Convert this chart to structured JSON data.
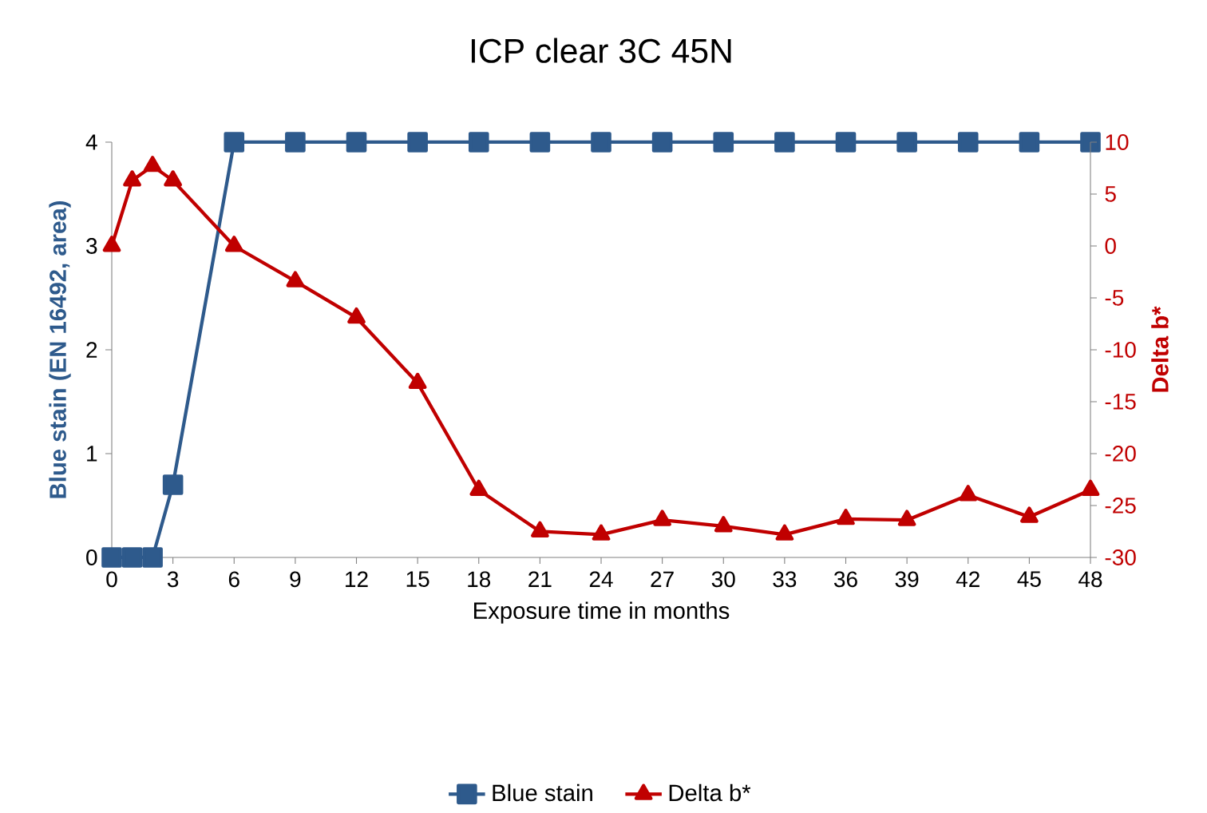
{
  "chart_data": {
    "type": "line",
    "title": "ICP clear 3C 45N",
    "xlabel": "Exposure time in months",
    "ylabel": "Blue stain (EN 16492, area)",
    "y2label": "Delta b*",
    "xlim": [
      0,
      48
    ],
    "xticks": [
      0,
      3,
      6,
      9,
      12,
      15,
      18,
      21,
      24,
      27,
      30,
      33,
      36,
      39,
      42,
      45,
      48
    ],
    "ylim": [
      0,
      4
    ],
    "yticks": [
      0,
      1,
      2,
      3,
      4
    ],
    "y2lim": [
      -30,
      10
    ],
    "y2ticks": [
      -30,
      -25,
      -20,
      -15,
      -10,
      -5,
      0,
      5,
      10
    ],
    "legend": "bottom",
    "line_style": "solid",
    "series": [
      {
        "name": "Blue stain",
        "color": "#2e5a8c",
        "marker": "square",
        "x": [
          0,
          1,
          2,
          3,
          6,
          9,
          12,
          15,
          18,
          21,
          24,
          27,
          30,
          33,
          36,
          39,
          42,
          45,
          48
        ],
        "values": [
          0,
          0,
          0,
          0.7,
          4,
          4,
          4,
          4,
          4,
          4,
          4,
          4,
          4,
          4,
          4,
          4,
          4,
          4,
          4
        ]
      },
      {
        "name": "Delta b*",
        "color": "#c00000",
        "marker": "triangle",
        "axis": "y2",
        "x": [
          0,
          1,
          2,
          3,
          6,
          9,
          12,
          15,
          18,
          21,
          24,
          27,
          30,
          33,
          36,
          39,
          42,
          45,
          48
        ],
        "values": [
          0,
          6.3,
          7.7,
          6.3,
          0,
          -3.4,
          -6.9,
          -13.2,
          -23.5,
          -27.5,
          -27.8,
          -26.4,
          -27,
          -27.8,
          -26.3,
          -26.4,
          -24,
          -26.1,
          -23.5
        ]
      }
    ]
  }
}
